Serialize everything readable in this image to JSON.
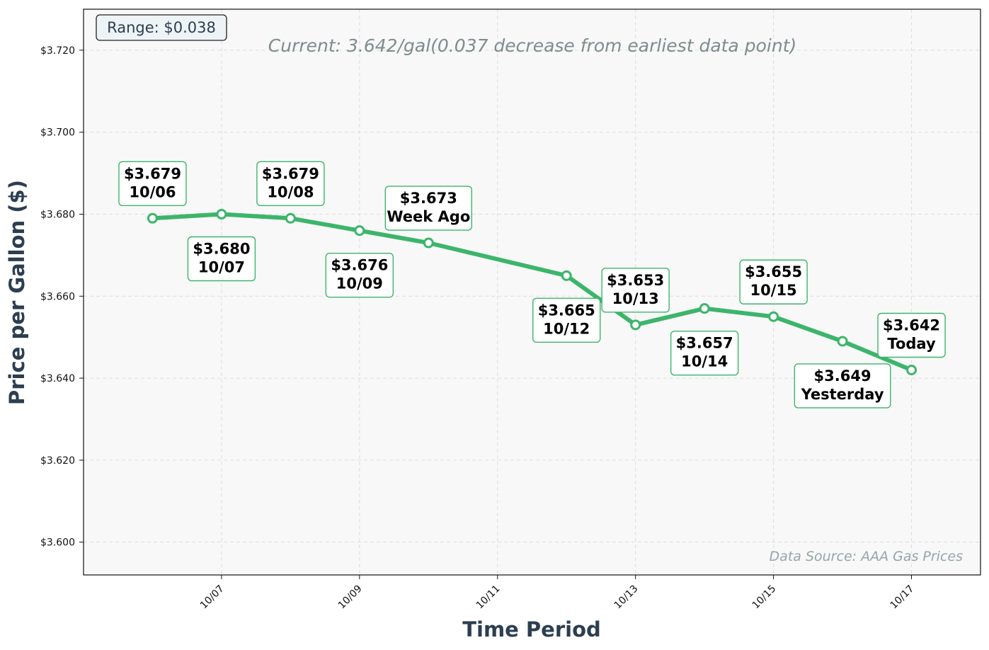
{
  "chart_data": {
    "type": "line",
    "title": "",
    "subtitle": "Current: 3.642/gal(0.037 decrease from earliest data point)",
    "xlabel": "Time Period",
    "ylabel": "Price per Gallon ($)",
    "ylim": [
      3.592,
      3.73
    ],
    "yticks": [
      3.6,
      3.62,
      3.64,
      3.66,
      3.68,
      3.7,
      3.72
    ],
    "ytick_labels": [
      "$3.600",
      "$3.620",
      "$3.640",
      "$3.660",
      "$3.680",
      "$3.700",
      "$3.720"
    ],
    "xlim": [
      "2023-10-05",
      "2023-10-18"
    ],
    "xticks": [
      "2023-10-07",
      "2023-10-09",
      "2023-10-11",
      "2023-10-13",
      "2023-10-15",
      "2023-10-17"
    ],
    "xtick_labels": [
      "10/07",
      "10/09",
      "10/11",
      "10/13",
      "10/15",
      "10/17"
    ],
    "grid": true,
    "series": [
      {
        "color": "#3cb56b",
        "points": [
          {
            "date": "2023-10-06",
            "value": 3.679,
            "price_label": "$3.679",
            "tag": "10/06",
            "label_pos": "above"
          },
          {
            "date": "2023-10-07",
            "value": 3.68,
            "price_label": "$3.680",
            "tag": "10/07",
            "label_pos": "below"
          },
          {
            "date": "2023-10-08",
            "value": 3.679,
            "price_label": "$3.679",
            "tag": "10/08",
            "label_pos": "above"
          },
          {
            "date": "2023-10-09",
            "value": 3.676,
            "price_label": "$3.676",
            "tag": "10/09",
            "label_pos": "below"
          },
          {
            "date": "2023-10-10",
            "value": 3.673,
            "price_label": "$3.673",
            "tag": "Week Ago",
            "label_pos": "above"
          },
          {
            "date": "2023-10-12",
            "value": 3.665,
            "price_label": "$3.665",
            "tag": "10/12",
            "label_pos": "below"
          },
          {
            "date": "2023-10-13",
            "value": 3.653,
            "price_label": "$3.653",
            "tag": "10/13",
            "label_pos": "above"
          },
          {
            "date": "2023-10-14",
            "value": 3.657,
            "price_label": "$3.657",
            "tag": "10/14",
            "label_pos": "below"
          },
          {
            "date": "2023-10-15",
            "value": 3.655,
            "price_label": "$3.655",
            "tag": "10/15",
            "label_pos": "above"
          },
          {
            "date": "2023-10-16",
            "value": 3.649,
            "price_label": "$3.649",
            "tag": "Yesterday",
            "label_pos": "below"
          },
          {
            "date": "2023-10-17",
            "value": 3.642,
            "price_label": "$3.642",
            "tag": "Today",
            "label_pos": "above"
          }
        ]
      }
    ],
    "range_box": "Range: $0.038",
    "source_note": "Data Source: AAA Gas Prices"
  },
  "colors": {
    "line": "#3cb56b",
    "plot_bg": "#f8f8f8",
    "axis_title": "#2c3e50",
    "subtitle": "#7f8c8d",
    "source": "#95a5a6",
    "range_box_bg": "#eef3f6"
  }
}
